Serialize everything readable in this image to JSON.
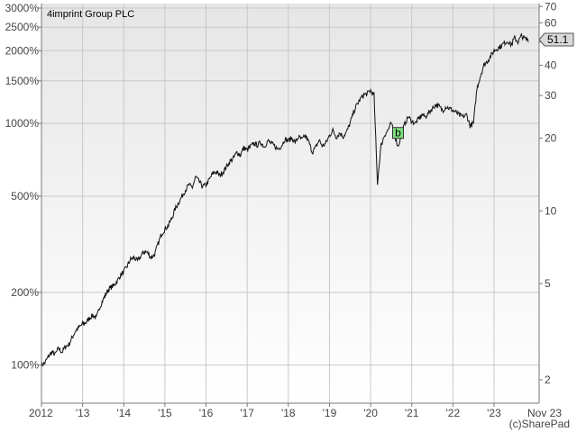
{
  "chart_data": {
    "type": "line",
    "title": "4imprint Group PLC",
    "credit": "(c)SharePad",
    "x_range": [
      "2012-01",
      "2023-11"
    ],
    "x_ticks": [
      "2012",
      "'13",
      "'14",
      "'15",
      "'16",
      "'17",
      "'18",
      "'19",
      "'20",
      "'21",
      "'22",
      "'23",
      "Nov 23"
    ],
    "y_left_scale": "log",
    "y_left_ticks": [
      "3000%",
      "2500%",
      "2000%",
      "1500%",
      "1000%",
      "500%",
      "200%",
      "100%"
    ],
    "y_right_scale": "log",
    "y_right_ticks": [
      "70",
      "60",
      "50",
      "40",
      "30",
      "20",
      "10",
      "5",
      "2"
    ],
    "y_right_range": [
      1.6,
      72
    ],
    "last_value": "51.1",
    "marker": {
      "label": "b",
      "x": "2020-09",
      "y": 21.0
    },
    "grid": true,
    "series": [
      {
        "x": [
          "2012-01",
          "2012-02",
          "2012-03",
          "2012-04",
          "2012-05",
          "2012-06",
          "2012-07",
          "2012-08",
          "2012-09",
          "2012-10",
          "2012-11",
          "2012-12",
          "2013-01",
          "2013-02",
          "2013-03",
          "2013-04",
          "2013-05",
          "2013-06",
          "2013-07",
          "2013-08",
          "2013-09",
          "2013-10",
          "2013-11",
          "2013-12",
          "2014-01",
          "2014-02",
          "2014-03",
          "2014-04",
          "2014-05",
          "2014-06",
          "2014-07",
          "2014-08",
          "2014-09",
          "2014-10",
          "2014-11",
          "2014-12",
          "2015-01",
          "2015-02",
          "2015-03",
          "2015-04",
          "2015-05",
          "2015-06",
          "2015-07",
          "2015-08",
          "2015-09",
          "2015-10",
          "2015-11",
          "2015-12",
          "2016-01",
          "2016-02",
          "2016-03",
          "2016-04",
          "2016-05",
          "2016-06",
          "2016-07",
          "2016-08",
          "2016-09",
          "2016-10",
          "2016-11",
          "2016-12",
          "2017-01",
          "2017-02",
          "2017-03",
          "2017-04",
          "2017-05",
          "2017-06",
          "2017-07",
          "2017-08",
          "2017-09",
          "2017-10",
          "2017-11",
          "2017-12",
          "2018-01",
          "2018-02",
          "2018-03",
          "2018-04",
          "2018-05",
          "2018-06",
          "2018-07",
          "2018-08",
          "2018-09",
          "2018-10",
          "2018-11",
          "2018-12",
          "2019-01",
          "2019-02",
          "2019-03",
          "2019-04",
          "2019-05",
          "2019-06",
          "2019-07",
          "2019-08",
          "2019-09",
          "2019-10",
          "2019-11",
          "2019-12",
          "2020-01",
          "2020-02",
          "2020-03",
          "2020-04",
          "2020-05",
          "2020-06",
          "2020-07",
          "2020-08",
          "2020-09",
          "2020-10",
          "2020-11",
          "2020-12",
          "2021-01",
          "2021-02",
          "2021-03",
          "2021-04",
          "2021-05",
          "2021-06",
          "2021-07",
          "2021-08",
          "2021-09",
          "2021-10",
          "2021-11",
          "2021-12",
          "2022-01",
          "2022-02",
          "2022-03",
          "2022-04",
          "2022-05",
          "2022-06",
          "2022-07",
          "2022-08",
          "2022-09",
          "2022-10",
          "2022-11",
          "2022-12",
          "2023-01",
          "2023-02",
          "2023-03",
          "2023-04",
          "2023-05",
          "2023-06",
          "2023-07",
          "2023-08",
          "2023-09",
          "2023-10",
          "2023-11"
        ],
        "y": [
          2.3,
          2.35,
          2.5,
          2.6,
          2.55,
          2.7,
          2.6,
          2.75,
          2.8,
          3.0,
          3.2,
          3.3,
          3.4,
          3.45,
          3.6,
          3.7,
          3.6,
          4.0,
          4.3,
          4.6,
          4.8,
          4.9,
          5.1,
          5.4,
          5.6,
          5.9,
          6.3,
          6.4,
          6.2,
          6.5,
          6.8,
          6.7,
          6.4,
          6.6,
          7.3,
          8.0,
          8.4,
          8.7,
          9.3,
          10.2,
          10.8,
          11.5,
          12.2,
          12.8,
          12.5,
          13.8,
          13.2,
          12.6,
          12.8,
          13.5,
          14.3,
          14.5,
          14.0,
          14.5,
          15.3,
          16.0,
          16.5,
          17.5,
          17.0,
          18.2,
          17.8,
          18.5,
          19.0,
          18.7,
          19.2,
          18.4,
          19.5,
          19.0,
          18.5,
          18.0,
          18.6,
          19.8,
          19.5,
          20.0,
          19.2,
          20.2,
          19.7,
          20.5,
          19.2,
          17.5,
          18.3,
          19.6,
          18.5,
          19.1,
          20.5,
          21.5,
          20.2,
          21.0,
          20.3,
          21.2,
          23.0,
          25.5,
          27.5,
          29.0,
          30.2,
          30.5,
          31.5,
          30.0,
          13.0,
          18.5,
          20.5,
          21.5,
          23.0,
          20.5,
          18.5,
          20.5,
          23.0,
          24.5,
          23.5,
          23.0,
          24.0,
          25.0,
          24.5,
          25.5,
          26.5,
          27.5,
          27.0,
          26.0,
          27.0,
          26.5,
          26.0,
          25.5,
          24.8,
          24.5,
          25.0,
          22.5,
          23.0,
          32.0,
          36.0,
          40.0,
          41.5,
          43.5,
          46.0,
          47.0,
          48.0,
          49.5,
          50.5,
          48.5,
          52.0,
          50.0,
          53.0,
          51.5,
          51.1
        ]
      }
    ]
  }
}
